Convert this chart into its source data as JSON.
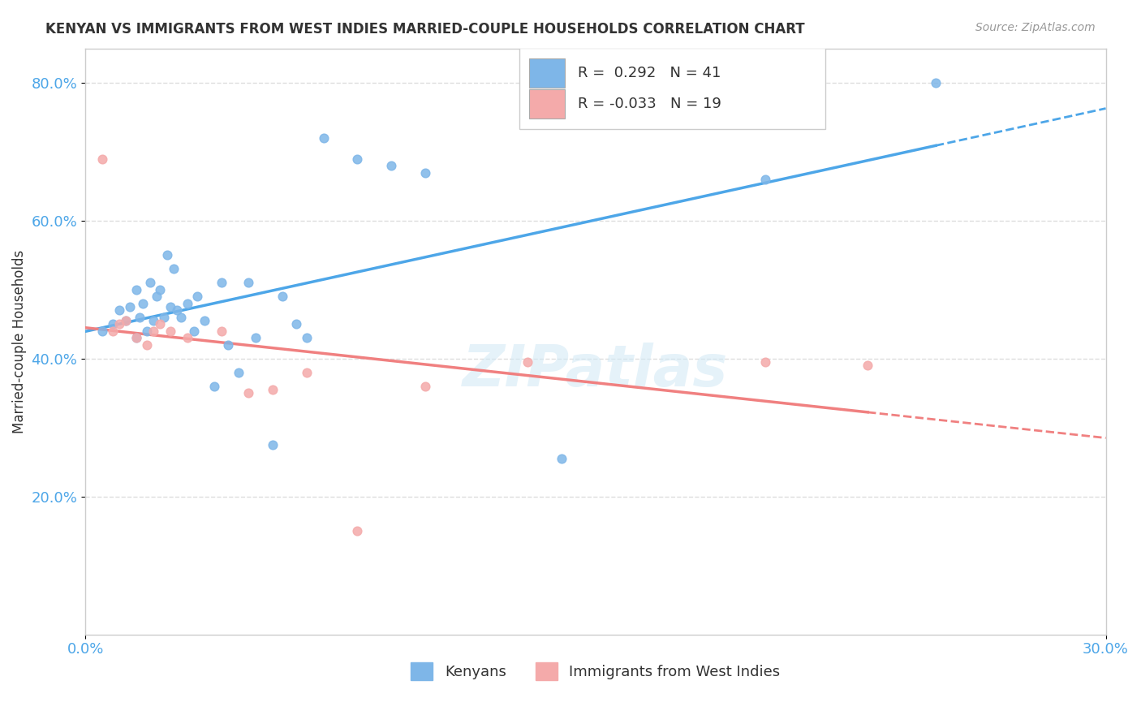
{
  "title": "KENYAN VS IMMIGRANTS FROM WEST INDIES MARRIED-COUPLE HOUSEHOLDS CORRELATION CHART",
  "source": "Source: ZipAtlas.com",
  "ylabel_label": "Married-couple Households",
  "x_min": 0.0,
  "x_max": 0.3,
  "y_min": 0.0,
  "y_max": 0.85,
  "x_tick_labels": [
    "0.0%",
    "30.0%"
  ],
  "y_ticks": [
    0.2,
    0.4,
    0.6,
    0.8
  ],
  "y_tick_labels": [
    "20.0%",
    "40.0%",
    "60.0%",
    "80.0%"
  ],
  "legend_labels": [
    "Kenyans",
    "Immigrants from West Indies"
  ],
  "kenyan_color": "#7EB6E8",
  "westindies_color": "#F4AAAA",
  "kenyan_line_color": "#4DA6E8",
  "westindies_line_color": "#F08080",
  "R_kenyan": 0.292,
  "N_kenyan": 41,
  "R_westindies": -0.033,
  "N_westindies": 19,
  "kenyan_scatter_x": [
    0.005,
    0.008,
    0.01,
    0.012,
    0.013,
    0.015,
    0.015,
    0.016,
    0.017,
    0.018,
    0.019,
    0.02,
    0.021,
    0.022,
    0.023,
    0.024,
    0.025,
    0.026,
    0.027,
    0.028,
    0.03,
    0.032,
    0.033,
    0.035,
    0.038,
    0.04,
    0.042,
    0.045,
    0.048,
    0.05,
    0.055,
    0.058,
    0.062,
    0.065,
    0.07,
    0.08,
    0.09,
    0.1,
    0.14,
    0.2,
    0.25
  ],
  "kenyan_scatter_y": [
    0.44,
    0.45,
    0.47,
    0.455,
    0.475,
    0.43,
    0.5,
    0.46,
    0.48,
    0.44,
    0.51,
    0.455,
    0.49,
    0.5,
    0.46,
    0.55,
    0.475,
    0.53,
    0.47,
    0.46,
    0.48,
    0.44,
    0.49,
    0.455,
    0.36,
    0.51,
    0.42,
    0.38,
    0.51,
    0.43,
    0.275,
    0.49,
    0.45,
    0.43,
    0.72,
    0.69,
    0.68,
    0.67,
    0.255,
    0.66,
    0.8
  ],
  "westindies_scatter_x": [
    0.005,
    0.008,
    0.01,
    0.012,
    0.015,
    0.018,
    0.02,
    0.022,
    0.025,
    0.03,
    0.04,
    0.048,
    0.055,
    0.065,
    0.08,
    0.1,
    0.13,
    0.2,
    0.23
  ],
  "westindies_scatter_y": [
    0.69,
    0.44,
    0.45,
    0.455,
    0.43,
    0.42,
    0.44,
    0.45,
    0.44,
    0.43,
    0.44,
    0.35,
    0.355,
    0.38,
    0.15,
    0.36,
    0.395,
    0.395,
    0.39
  ],
  "watermark": "ZIPatlas",
  "background_color": "#ffffff",
  "grid_color": "#dddddd",
  "tick_color": "#4DA6E8",
  "text_color": "#333333",
  "source_color": "#999999"
}
